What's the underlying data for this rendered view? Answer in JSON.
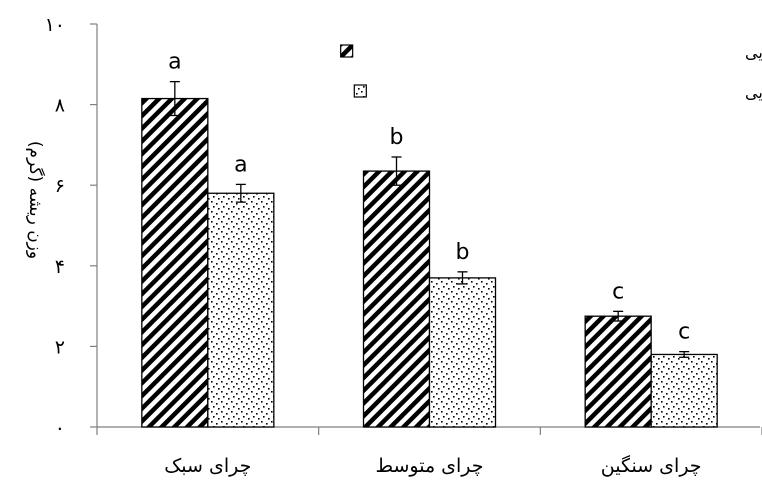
{
  "chart_data": {
    "type": "bar",
    "title": "",
    "xlabel": "",
    "ylabel": "وزن ریشه (گرم)",
    "ylim": [
      0,
      10
    ],
    "yticks": [
      0,
      2,
      4,
      6,
      8,
      10
    ],
    "ytick_labels": [
      "۰",
      "۲",
      "۴",
      "۶",
      "۸",
      "۱۰"
    ],
    "categories": [
      "چرای سبک",
      "چرای متوسط",
      "چرای سنگین"
    ],
    "grid": false,
    "legend_position": "top-right",
    "series": [
      {
        "name": "میانگین وزن ریشه  A.textilisتحت تیمارهای مختلف چرایی",
        "pattern": "diagonal-hatch",
        "values": [
          8.15,
          6.35,
          2.75
        ],
        "errors": [
          0.42,
          0.35,
          0.12
        ],
        "labels": [
          "a",
          "b",
          "c"
        ]
      },
      {
        "name": "میانگین وزن ریشه  F.ovinaتحت تیمارهای مختلف چرایی",
        "pattern": "dotted",
        "values": [
          5.8,
          3.7,
          1.8
        ],
        "errors": [
          0.22,
          0.15,
          0.07
        ],
        "labels": [
          "a",
          "b",
          "c"
        ]
      }
    ]
  }
}
